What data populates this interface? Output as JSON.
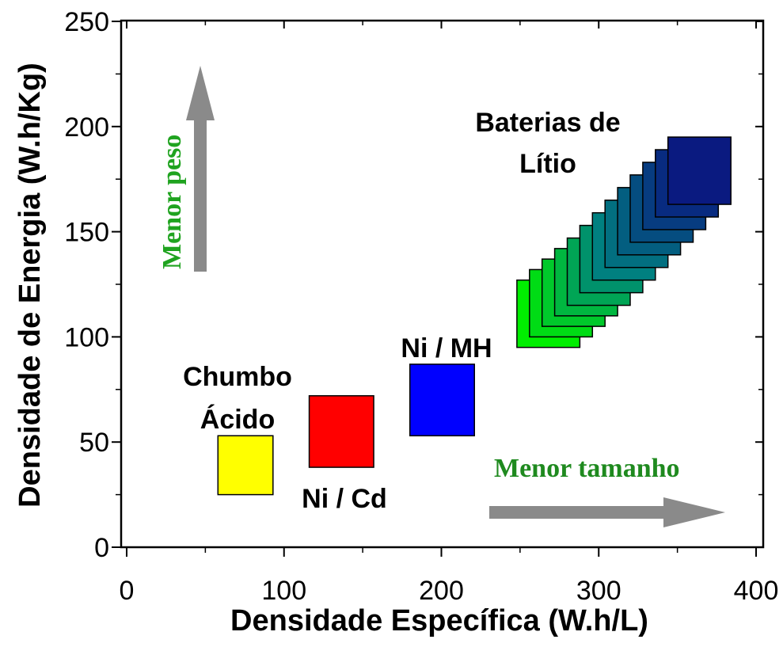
{
  "chart_data": {
    "type": "scatter",
    "xlabel": "Densidade Específica (W.h/L)",
    "ylabel": "Densidade de Energia (W.h/Kg)",
    "xlim": [
      0,
      400
    ],
    "ylim": [
      0,
      250
    ],
    "xticks": [
      0,
      100,
      200,
      300,
      400
    ],
    "yticks": [
      0,
      50,
      100,
      150,
      200,
      250
    ],
    "xtick_labels": [
      "0",
      "100",
      "200",
      "300",
      "400"
    ],
    "ytick_labels": [
      "0",
      "50",
      "100",
      "150",
      "200",
      "250"
    ],
    "grid": false,
    "regions": [
      {
        "name": "Chumbo Ácido",
        "label_lines": [
          "Chumbo",
          "Ácido"
        ],
        "x_range": [
          58,
          93
        ],
        "y_range": [
          25,
          53
        ],
        "color": "#ffff00"
      },
      {
        "name": "Ni / Cd",
        "label_lines": [
          "Ni / Cd"
        ],
        "x_range": [
          116,
          157
        ],
        "y_range": [
          38,
          72
        ],
        "color": "#ff0000"
      },
      {
        "name": "Ni / MH",
        "label_lines": [
          "Ni / MH"
        ],
        "x_range": [
          180,
          221
        ],
        "y_range": [
          53,
          87
        ],
        "color": "#0000ff"
      },
      {
        "name": "Baterias de Lítio",
        "label_lines": [
          "Baterias de",
          "Lítio"
        ],
        "color_gradient": [
          "#00ee00",
          "#008080",
          "#0a1a80"
        ],
        "squares": [
          {
            "x_range": [
              248,
              288
            ],
            "y_range": [
              95,
              127
            ]
          },
          {
            "x_range": [
              256,
              296
            ],
            "y_range": [
              100,
              132
            ]
          },
          {
            "x_range": [
              264,
              304
            ],
            "y_range": [
              105,
              137
            ]
          },
          {
            "x_range": [
              272,
              312
            ],
            "y_range": [
              110,
              142
            ]
          },
          {
            "x_range": [
              280,
              320
            ],
            "y_range": [
              115,
              147
            ]
          },
          {
            "x_range": [
              288,
              328
            ],
            "y_range": [
              121,
              153
            ]
          },
          {
            "x_range": [
              296,
              336
            ],
            "y_range": [
              127,
              159
            ]
          },
          {
            "x_range": [
              304,
              344
            ],
            "y_range": [
              133,
              165
            ]
          },
          {
            "x_range": [
              312,
              352
            ],
            "y_range": [
              139,
              171
            ]
          },
          {
            "x_range": [
              320,
              360
            ],
            "y_range": [
              145,
              177
            ]
          },
          {
            "x_range": [
              328,
              368
            ],
            "y_range": [
              151,
              183
            ]
          },
          {
            "x_range": [
              336,
              376
            ],
            "y_range": [
              157,
              189
            ]
          },
          {
            "x_range": [
              344,
              384
            ],
            "y_range": [
              163,
              195
            ]
          }
        ]
      }
    ],
    "annotations": [
      {
        "text": "Menor peso",
        "direction": "up",
        "color": "#1fa31f"
      },
      {
        "text": "Menor tamanho",
        "direction": "right",
        "color": "#1f8a1f"
      }
    ]
  }
}
